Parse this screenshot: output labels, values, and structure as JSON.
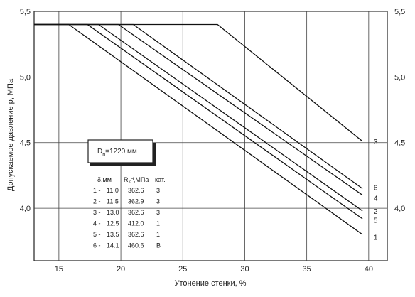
{
  "chart_data": {
    "type": "line",
    "xlabel": "Утонение стенки, %",
    "ylabel": "Допускаемое давление  р, МПа",
    "xlim": [
      13,
      41.5
    ],
    "ylim": [
      3.6,
      5.5
    ],
    "x_ticks": [
      15,
      20,
      25,
      30,
      35,
      40
    ],
    "x_tick_labels": [
      "15",
      "20",
      "25",
      "30",
      "35",
      "40"
    ],
    "y_ticks": [
      4.0,
      4.5,
      5.0,
      5.5
    ],
    "y_tick_labels_left": [
      "4,0",
      "4,5",
      "5,0",
      "5,5"
    ],
    "y_tick_labels_right": [
      "4,0",
      "4,5",
      "5,0",
      "5,5"
    ],
    "grid": true,
    "series": [
      {
        "name": "1",
        "x": [
          13.0,
          15.8,
          39.5
        ],
        "y": [
          5.4,
          5.4,
          3.8
        ]
      },
      {
        "name": "5",
        "x": [
          13.0,
          17.3,
          39.5
        ],
        "y": [
          5.4,
          5.4,
          3.92
        ]
      },
      {
        "name": "2",
        "x": [
          13.0,
          18.2,
          39.5
        ],
        "y": [
          5.4,
          5.4,
          3.98
        ]
      },
      {
        "name": "4",
        "x": [
          13.0,
          19.8,
          39.5
        ],
        "y": [
          5.4,
          5.4,
          4.1
        ]
      },
      {
        "name": "6",
        "x": [
          13.0,
          21.0,
          39.5
        ],
        "y": [
          5.4,
          5.4,
          4.15
        ]
      },
      {
        "name": "3",
        "x": [
          13.0,
          27.8,
          39.5
        ],
        "y": [
          5.4,
          5.4,
          4.51
        ]
      }
    ],
    "curve_labels": [
      {
        "text": "3",
        "x": 40.4,
        "y": 4.51
      },
      {
        "text": "6",
        "x": 40.4,
        "y": 4.16
      },
      {
        "text": "4",
        "x": 40.4,
        "y": 4.08
      },
      {
        "text": "2",
        "x": 40.4,
        "y": 3.98
      },
      {
        "text": "5",
        "x": 40.4,
        "y": 3.91
      },
      {
        "text": "1",
        "x": 40.4,
        "y": 3.78
      }
    ],
    "diameter_box": {
      "text_main": "D",
      "text_sub": "н",
      "text_rest": "=1220 мм"
    },
    "legend_table": {
      "headers": [
        "δ,мм",
        "R₂ᴴ,МПа",
        "кат."
      ],
      "rows": [
        {
          "id": "1 -",
          "delta": "11.0",
          "r": "362.6",
          "cat": "3"
        },
        {
          "id": "2 -",
          "delta": "11.5",
          "r": "362.9",
          "cat": "3"
        },
        {
          "id": "3 -",
          "delta": "13.0",
          "r": "362.6",
          "cat": "3"
        },
        {
          "id": "4 -",
          "delta": "12.5",
          "r": "412.0",
          "cat": "1"
        },
        {
          "id": "5 -",
          "delta": "13.5",
          "r": "362.6",
          "cat": "1"
        },
        {
          "id": "6 -",
          "delta": "14.1",
          "r": "460.6",
          "cat": "B"
        }
      ]
    }
  }
}
